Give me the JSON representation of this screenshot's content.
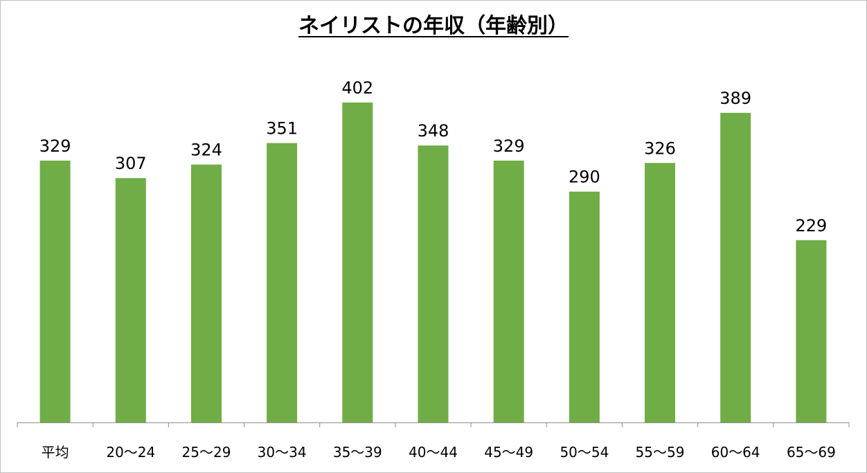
{
  "chart_data": {
    "type": "bar",
    "title": "ネイリストの年収（年齢別）",
    "xlabel": "",
    "ylabel": "",
    "categories": [
      "平均",
      "20〜24",
      "25〜29",
      "30〜34",
      "35〜39",
      "40〜44",
      "45〜49",
      "50〜54",
      "55〜59",
      "60〜64",
      "65〜69"
    ],
    "values": [
      329,
      307,
      324,
      351,
      402,
      348,
      329,
      290,
      326,
      389,
      229
    ],
    "ylim": [
      0,
      402
    ],
    "grid": false,
    "legend": "none",
    "bar_color": "#70ad47",
    "data_labels": true
  }
}
